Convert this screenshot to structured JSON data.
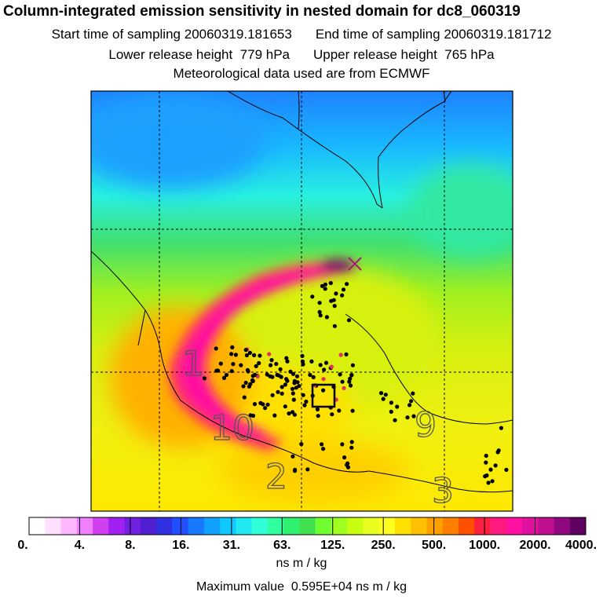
{
  "header": {
    "title": "Column-integrated emission sensitivity in nested domain for dc8_060319",
    "start_label": "Start time of sampling",
    "start_value": "20060319.181653",
    "end_label": "End time of sampling",
    "end_value": "20060319.181712",
    "lower_label": "Lower release height",
    "lower_value": "779 hPa",
    "upper_label": "Upper release height",
    "upper_value": "765 hPa",
    "met_text": "Meteorological data used are from ECMWF"
  },
  "map": {
    "background_low_color": "#1f8cff",
    "background_mid_color": "#4fe06a",
    "plume_color": "#ff1aa0",
    "plume_peak_color": "#5a1060",
    "region_labels": [
      "1",
      "10",
      "2",
      "9",
      "3"
    ],
    "marker_icon": "x-marker-icon",
    "box_icon": "square-marker-icon"
  },
  "colorbar": {
    "tick_labels": [
      "0.",
      "4.",
      "8.",
      "16.",
      "31.",
      "63.",
      "125.",
      "250.",
      "500.",
      "1000.",
      "2000.",
      "4000."
    ],
    "colors": [
      "#ffffff",
      "#ffe0ff",
      "#ffb8ff",
      "#f080ff",
      "#d040f0",
      "#a020f0",
      "#7020e0",
      "#5020d0",
      "#3030e0",
      "#2050ff",
      "#1878ff",
      "#10a0ff",
      "#10c8ff",
      "#20e8f0",
      "#30ffd8",
      "#30ffa0",
      "#30f070",
      "#40e050",
      "#70ff30",
      "#a0ff20",
      "#c8ff10",
      "#e8ff20",
      "#ffff20",
      "#ffe000",
      "#ffc000",
      "#ffa000",
      "#ff8000",
      "#ff5000",
      "#ff2040",
      "#ff1a80",
      "#ff10a0",
      "#e010a0",
      "#c01090",
      "#900880",
      "#600060"
    ],
    "unit": "ns m / kg"
  },
  "footer": {
    "max_label": "Maximum value",
    "max_value": "0.595E+04 ns m / kg"
  }
}
